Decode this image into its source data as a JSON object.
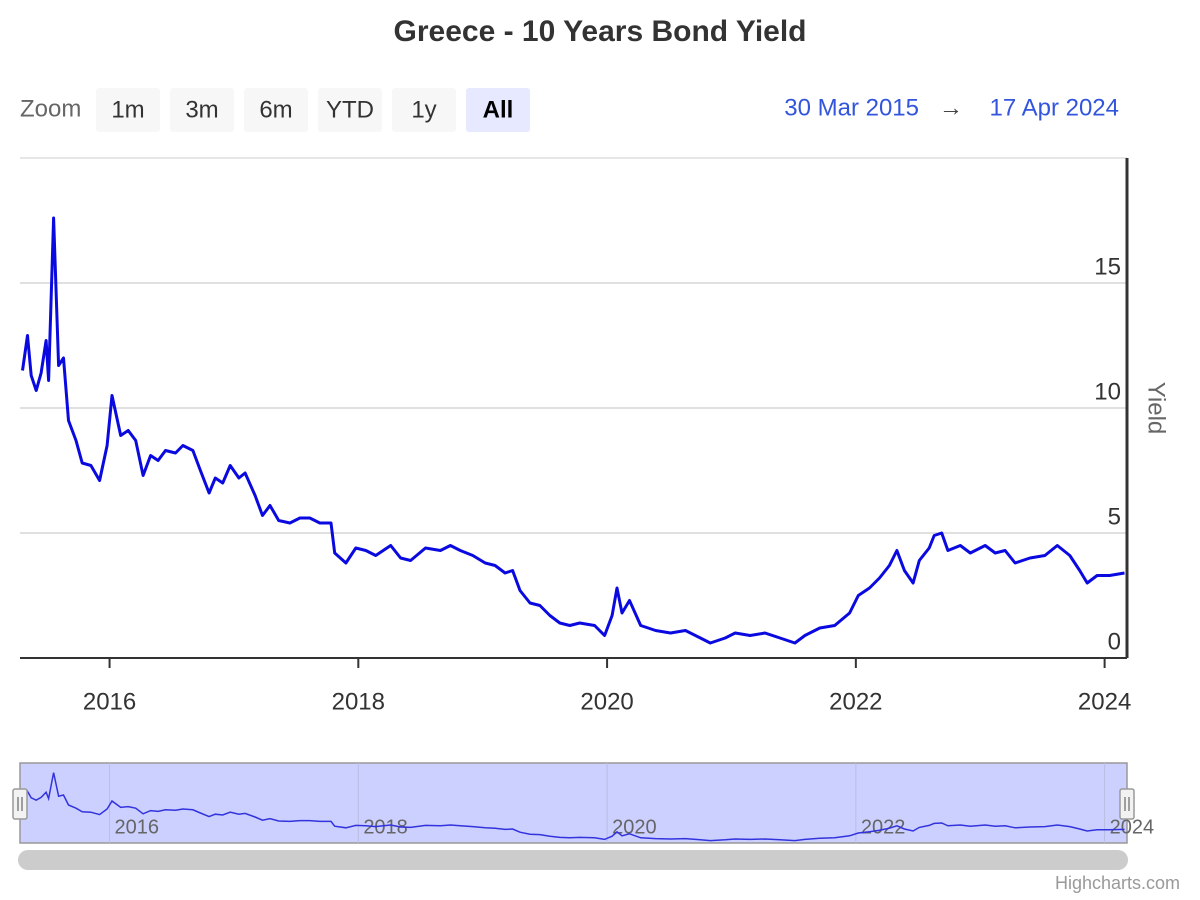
{
  "chart_data": {
    "type": "line",
    "title": "Greece - 10 Years Bond Yield",
    "y_label": "Yield",
    "credits": "Highcharts.com",
    "range_selector": {
      "label": "Zoom",
      "buttons": [
        "1m",
        "3m",
        "6m",
        "YTD",
        "1y",
        "All"
      ],
      "selected": 5,
      "from": "30 Mar 2015",
      "separator": "→",
      "to": "17 Apr 2024"
    },
    "color": "#0a0ae0",
    "navigator_color": "#3333dd",
    "grid": true,
    "xlim": [
      2015.28,
      2024.18
    ],
    "xticks": [
      2016,
      2018,
      2020,
      2022,
      2024
    ],
    "ylim": [
      0,
      20
    ],
    "yticks": [
      0,
      5,
      10,
      15
    ],
    "x": [
      2015.3,
      2015.34,
      2015.37,
      2015.41,
      2015.45,
      2015.49,
      2015.51,
      2015.55,
      2015.59,
      2015.63,
      2015.67,
      2015.73,
      2015.78,
      2015.85,
      2015.92,
      2015.98,
      2016.02,
      2016.09,
      2016.15,
      2016.21,
      2016.27,
      2016.33,
      2016.39,
      2016.45,
      2016.53,
      2016.59,
      2016.67,
      2016.73,
      2016.8,
      2016.85,
      2016.91,
      2016.97,
      2017.04,
      2017.09,
      2017.17,
      2017.23,
      2017.29,
      2017.36,
      2017.45,
      2017.53,
      2017.61,
      2017.69,
      2017.78,
      2017.81,
      2017.9,
      2017.98,
      2018.06,
      2018.14,
      2018.26,
      2018.34,
      2018.42,
      2018.54,
      2018.66,
      2018.74,
      2018.82,
      2018.92,
      2019.02,
      2019.1,
      2019.18,
      2019.24,
      2019.3,
      2019.38,
      2019.46,
      2019.54,
      2019.62,
      2019.7,
      2019.78,
      2019.9,
      2019.98,
      2020.04,
      2020.08,
      2020.12,
      2020.18,
      2020.27,
      2020.39,
      2020.51,
      2020.63,
      2020.75,
      2020.83,
      2020.95,
      2021.03,
      2021.15,
      2021.27,
      2021.39,
      2021.51,
      2021.59,
      2021.71,
      2021.83,
      2021.95,
      2022.02,
      2022.11,
      2022.19,
      2022.27,
      2022.33,
      2022.39,
      2022.46,
      2022.51,
      2022.59,
      2022.63,
      2022.69,
      2022.74,
      2022.84,
      2022.92,
      2023.04,
      2023.12,
      2023.2,
      2023.28,
      2023.4,
      2023.52,
      2023.62,
      2023.72,
      2023.8,
      2023.86,
      2023.94,
      2024.04,
      2024.16
    ],
    "values": [
      11.5,
      12.9,
      11.3,
      10.7,
      11.4,
      12.7,
      11.1,
      17.6,
      11.7,
      12.0,
      9.5,
      8.7,
      7.8,
      7.7,
      7.1,
      8.5,
      10.5,
      8.9,
      9.1,
      8.7,
      7.3,
      8.1,
      7.9,
      8.3,
      8.2,
      8.5,
      8.3,
      7.5,
      6.6,
      7.2,
      7.0,
      7.7,
      7.2,
      7.4,
      6.5,
      5.7,
      6.1,
      5.5,
      5.4,
      5.6,
      5.6,
      5.4,
      5.4,
      4.2,
      3.8,
      4.4,
      4.3,
      4.1,
      4.5,
      4.0,
      3.9,
      4.4,
      4.3,
      4.5,
      4.3,
      4.1,
      3.8,
      3.7,
      3.4,
      3.5,
      2.7,
      2.2,
      2.1,
      1.7,
      1.4,
      1.3,
      1.4,
      1.3,
      0.9,
      1.7,
      2.8,
      1.8,
      2.3,
      1.3,
      1.1,
      1.0,
      1.1,
      0.8,
      0.6,
      0.8,
      1.0,
      0.9,
      1.0,
      0.8,
      0.6,
      0.9,
      1.2,
      1.3,
      1.8,
      2.5,
      2.8,
      3.2,
      3.7,
      4.3,
      3.5,
      3.0,
      3.9,
      4.4,
      4.9,
      5.0,
      4.3,
      4.5,
      4.2,
      4.5,
      4.2,
      4.3,
      3.8,
      4.0,
      4.1,
      4.5,
      4.1,
      3.5,
      3.0,
      3.3,
      3.3,
      3.4
    ]
  }
}
